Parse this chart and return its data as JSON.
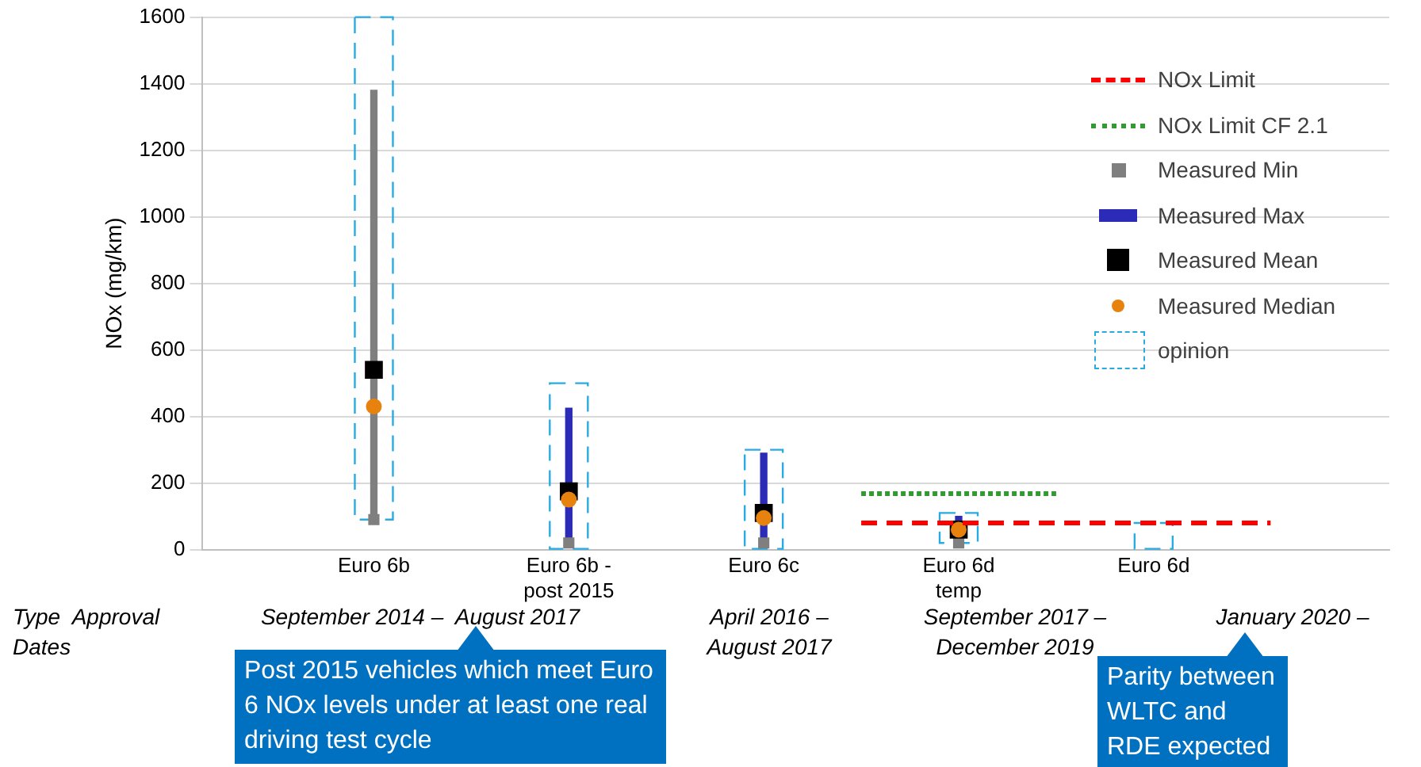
{
  "chart_data": {
    "type": "scatter",
    "ylabel": "NOx (mg/km)",
    "categories": [
      "Euro 6b",
      "Euro 6b -\npost 2015",
      "Euro 6c",
      "Euro 6d\ntemp",
      "Euro 6d"
    ],
    "ylim": [
      0,
      1600
    ],
    "yticks": [
      0,
      200,
      400,
      600,
      800,
      1000,
      1200,
      1400,
      1600
    ],
    "grid": "y",
    "legend": "top right",
    "series": [
      {
        "name": "Measured Min",
        "marker": "square",
        "color": "#7f7f7f",
        "values": [
          90,
          20,
          20,
          20,
          null
        ]
      },
      {
        "name": "Measured Max",
        "type": "bar",
        "color": "#2b2bb8",
        "colors": [
          "#7f7f7f",
          "#2b2bb8",
          "#2b2bb8",
          "#2b2bb8",
          null
        ],
        "base": [
          90,
          20,
          20,
          20,
          null
        ],
        "values": [
          1290,
          405,
          270,
          80,
          null
        ]
      },
      {
        "name": "Measured Mean",
        "marker": "square",
        "color": "#000000",
        "values": [
          540,
          175,
          110,
          60,
          null
        ]
      },
      {
        "name": "Measured Median",
        "marker": "circle",
        "color": "#e8820e",
        "values": [
          430,
          150,
          95,
          60,
          null
        ]
      },
      {
        "name": "opinion",
        "type": "bar",
        "color": "#29abe2",
        "line_style": "dashed",
        "base": [
          90,
          0,
          0,
          20,
          0
        ],
        "values": [
          1510,
          500,
          300,
          90,
          80
        ]
      }
    ],
    "ref_lines": [
      {
        "axis": "y",
        "value": 80,
        "label": "NOx Limit",
        "color": "#ff0000",
        "line_style": "dashed"
      },
      {
        "axis": "y",
        "value": 168,
        "label": "NOx Limit CF 2.1",
        "color": "#339933",
        "line_style": "dotted"
      }
    ],
    "annotations": [
      "Type  Approval\nDates",
      "September 2014 –  August 2017",
      "April 2016 –\nAugust 2017",
      "September 2017 –\nDecember 2019",
      "January 2020 –",
      "Post 2015 vehicles which meet Euro 6 NOx levels under at least one real driving test cycle",
      "Parity between WLTC and RDE expected"
    ]
  }
}
